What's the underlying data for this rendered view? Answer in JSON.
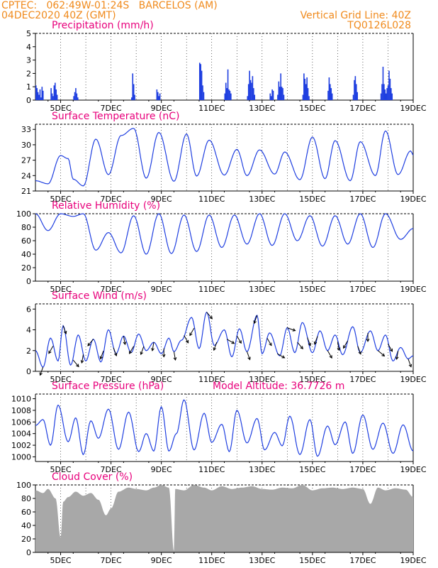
{
  "header": {
    "line1_left": "CPTEC:   062:49W-01:24S   BARCELOS (AM)",
    "line2_left": "04DEC2020 40Z (GMT)",
    "line2_right": "Vertical Grid Line: 40Z",
    "line3_right": "TQ0126L028"
  },
  "colors": {
    "header": "#f08a1c",
    "title": "#e8007c",
    "series": "#1f3fe0",
    "cloud": "#a8a8a8"
  },
  "chart_data": [
    {
      "type": "bar",
      "title": "Precipitation (mm/h)",
      "yticks": [
        0,
        1,
        2,
        3,
        4,
        5
      ],
      "ylim": [
        0,
        5
      ],
      "x_ticks": [
        "5DEC",
        "7DEC",
        "9DEC",
        "11DEC",
        "13DEC",
        "15DEC",
        "17DEC",
        "19DEC"
      ],
      "xlim_days": [
        4,
        19
      ],
      "approximate_rain_events": [
        {
          "day": 4.0,
          "values": [
            1.1,
            0.9,
            0.6,
            0.4,
            0.8,
            0.2,
            1.0,
            0.7
          ]
        },
        {
          "day": 4.6,
          "values": [
            0.9,
            0.5,
            0.3,
            1.1,
            1.3,
            0.8,
            0.4
          ]
        },
        {
          "day": 5.5,
          "values": [
            0.3,
            0.6,
            0.9,
            0.5,
            0.2
          ]
        },
        {
          "day": 7.8,
          "values": [
            0.2,
            2.0,
            1.2,
            0.4
          ]
        },
        {
          "day": 8.8,
          "values": [
            0.8,
            0.6,
            0.3,
            0.5
          ]
        },
        {
          "day": 10.5,
          "values": [
            2.8,
            2.7,
            2.2,
            1.1,
            0.6
          ]
        },
        {
          "day": 11.5,
          "values": [
            0.5,
            1.3,
            0.9,
            2.3,
            0.8,
            0.7,
            0.5
          ]
        },
        {
          "day": 12.4,
          "values": [
            0.3,
            1.2,
            2.2,
            1.5,
            1.3,
            1.8,
            0.9,
            0.4
          ]
        },
        {
          "day": 13.3,
          "values": [
            0.5,
            0.3,
            0.8,
            0.7
          ]
        },
        {
          "day": 13.6,
          "values": [
            0.4,
            1.4,
            1.0,
            2.0,
            1.0,
            0.9,
            0.4
          ]
        },
        {
          "day": 14.6,
          "values": [
            0.4,
            2.0,
            1.6,
            1.2,
            1.7,
            0.9,
            0.3
          ]
        },
        {
          "day": 15.6,
          "values": [
            0.7,
            1.7,
            1.2,
            0.9,
            0.5
          ]
        },
        {
          "day": 16.6,
          "values": [
            0.4,
            1.5,
            1.8,
            1.2,
            0.6
          ]
        },
        {
          "day": 17.7,
          "values": [
            0.5,
            1.2,
            2.5,
            1.2,
            0.8,
            0.5,
            0.9,
            1.1,
            2.2,
            1.6,
            0.9,
            0.5
          ]
        }
      ]
    },
    {
      "type": "line",
      "title": "Surface Temperature (nC)",
      "yticks": [
        21,
        24,
        27,
        30,
        33
      ],
      "ylim": [
        21,
        34
      ],
      "x_ticks": [
        "5DEC",
        "7DEC",
        "9DEC",
        "11DEC",
        "13DEC",
        "15DEC",
        "17DEC",
        "19DEC"
      ],
      "min_max_points": [
        [
          4.0,
          23.0
        ],
        [
          4.5,
          22.4
        ],
        [
          5.0,
          27.9
        ],
        [
          5.3,
          27.3
        ],
        [
          5.5,
          23.3
        ],
        [
          5.9,
          22.0
        ],
        [
          6.4,
          31.1
        ],
        [
          6.9,
          24.2
        ],
        [
          7.4,
          31.8
        ],
        [
          7.9,
          33.2
        ],
        [
          8.4,
          23.5
        ],
        [
          8.9,
          32.4
        ],
        [
          9.5,
          22.9
        ],
        [
          10.0,
          32.1
        ],
        [
          10.4,
          23.9
        ],
        [
          10.9,
          30.9
        ],
        [
          11.5,
          24.1
        ],
        [
          12.0,
          29.1
        ],
        [
          12.4,
          24.0
        ],
        [
          12.9,
          29.0
        ],
        [
          13.5,
          24.3
        ],
        [
          13.9,
          28.6
        ],
        [
          14.5,
          23.2
        ],
        [
          15.0,
          31.5
        ],
        [
          15.5,
          23.4
        ],
        [
          15.9,
          30.8
        ],
        [
          16.5,
          23.0
        ],
        [
          16.9,
          30.6
        ],
        [
          17.5,
          24.0
        ],
        [
          17.9,
          32.7
        ],
        [
          18.4,
          24.2
        ],
        [
          18.9,
          28.8
        ],
        [
          19.0,
          28.0
        ]
      ]
    },
    {
      "type": "line",
      "title": "Relative Humidity (%)",
      "yticks": [
        0,
        20,
        40,
        60,
        80,
        100
      ],
      "ylim": [
        0,
        100
      ],
      "x_ticks": [
        "5DEC",
        "7DEC",
        "9DEC",
        "11DEC",
        "13DEC",
        "15DEC",
        "17DEC",
        "19DEC"
      ],
      "min_max_points": [
        [
          4.0,
          100
        ],
        [
          4.5,
          75
        ],
        [
          5.0,
          100
        ],
        [
          5.5,
          96
        ],
        [
          5.9,
          100
        ],
        [
          6.4,
          46
        ],
        [
          6.9,
          72
        ],
        [
          7.4,
          42
        ],
        [
          7.9,
          97
        ],
        [
          8.4,
          40
        ],
        [
          8.9,
          100
        ],
        [
          9.4,
          41
        ],
        [
          9.9,
          98
        ],
        [
          10.4,
          44
        ],
        [
          10.9,
          98
        ],
        [
          11.4,
          50
        ],
        [
          11.9,
          98
        ],
        [
          12.4,
          55
        ],
        [
          12.9,
          100
        ],
        [
          13.4,
          53
        ],
        [
          13.9,
          100
        ],
        [
          14.4,
          60
        ],
        [
          14.9,
          97
        ],
        [
          15.4,
          52
        ],
        [
          15.9,
          97
        ],
        [
          16.4,
          55
        ],
        [
          16.9,
          100
        ],
        [
          17.4,
          50
        ],
        [
          17.9,
          100
        ],
        [
          18.5,
          62
        ],
        [
          19.0,
          78
        ]
      ]
    },
    {
      "type": "line",
      "title": "Surface Wind (m/s)",
      "yticks": [
        0,
        2,
        4,
        6
      ],
      "ylim": [
        0,
        6.5
      ],
      "x_ticks": [
        "5DEC",
        "7DEC",
        "9DEC",
        "11DEC",
        "13DEC",
        "15DEC",
        "17DEC",
        "19DEC"
      ],
      "min_max_points": [
        [
          4.0,
          2.0
        ],
        [
          4.3,
          0.4
        ],
        [
          4.6,
          3.2
        ],
        [
          4.9,
          1.0
        ],
        [
          5.1,
          4.4
        ],
        [
          5.4,
          0.6
        ],
        [
          5.7,
          3.5
        ],
        [
          6.0,
          1.0
        ],
        [
          6.3,
          3.1
        ],
        [
          6.6,
          0.9
        ],
        [
          6.9,
          4.0
        ],
        [
          7.2,
          1.7
        ],
        [
          7.5,
          3.4
        ],
        [
          7.8,
          1.8
        ],
        [
          8.1,
          3.6
        ],
        [
          8.4,
          2.0
        ],
        [
          8.7,
          2.8
        ],
        [
          9.0,
          1.7
        ],
        [
          9.3,
          3.2
        ],
        [
          9.5,
          1.9
        ],
        [
          9.8,
          3.0
        ],
        [
          10.2,
          5.2
        ],
        [
          10.5,
          2.2
        ],
        [
          10.8,
          5.7
        ],
        [
          11.1,
          2.5
        ],
        [
          11.5,
          4.0
        ],
        [
          11.8,
          1.4
        ],
        [
          12.1,
          4.1
        ],
        [
          12.4,
          1.9
        ],
        [
          12.8,
          5.4
        ],
        [
          13.0,
          1.7
        ],
        [
          13.3,
          3.7
        ],
        [
          13.7,
          1.5
        ],
        [
          14.0,
          4.2
        ],
        [
          14.3,
          1.8
        ],
        [
          14.6,
          4.7
        ],
        [
          15.0,
          1.8
        ],
        [
          15.3,
          3.9
        ],
        [
          15.6,
          2.0
        ],
        [
          15.9,
          3.5
        ],
        [
          16.2,
          1.6
        ],
        [
          16.6,
          4.3
        ],
        [
          16.9,
          1.8
        ],
        [
          17.3,
          3.9
        ],
        [
          17.6,
          2.0
        ],
        [
          17.9,
          3.5
        ],
        [
          18.2,
          1.0
        ],
        [
          18.5,
          2.3
        ],
        [
          18.8,
          1.2
        ],
        [
          19.0,
          1.5
        ]
      ],
      "arrow_days": [
        4.3,
        4.7,
        5.1,
        5.5,
        5.9,
        6.3,
        6.7,
        7.1,
        7.5,
        7.9,
        8.3,
        8.7,
        9.1,
        9.5,
        9.9,
        10.3,
        10.8,
        11.2,
        11.6,
        12.0,
        12.4,
        12.8,
        13.2,
        13.6,
        14.0,
        14.4,
        14.8,
        15.2,
        15.6,
        16.0,
        16.4,
        16.8,
        17.2,
        17.6,
        18.0,
        18.4,
        18.8
      ],
      "arrow_dirs_deg": [
        200,
        210,
        160,
        140,
        190,
        220,
        200,
        160,
        170,
        210,
        200,
        190,
        180,
        170,
        150,
        210,
        140,
        200,
        120,
        150,
        160,
        200,
        150,
        120,
        110,
        140,
        160,
        200,
        150,
        170,
        210,
        160,
        180,
        130,
        150,
        190,
        160
      ]
    },
    {
      "type": "line",
      "title": "Surface Pressure (hPa)",
      "annotation": "Model Altitude: 36.7726 m",
      "yticks": [
        1000,
        1002,
        1004,
        1006,
        1008,
        1010
      ],
      "ylim": [
        999.2,
        1010.8
      ],
      "x_ticks": [
        "5DEC",
        "7DEC",
        "9DEC",
        "11DEC",
        "13DEC",
        "15DEC",
        "17DEC",
        "19DEC"
      ],
      "min_max_points": [
        [
          4.0,
          1005.4
        ],
        [
          4.3,
          1006.4
        ],
        [
          4.6,
          1002.0
        ],
        [
          4.9,
          1008.9
        ],
        [
          5.3,
          1002.6
        ],
        [
          5.6,
          1006.7
        ],
        [
          5.9,
          1000.4
        ],
        [
          6.2,
          1006.2
        ],
        [
          6.5,
          1003.2
        ],
        [
          6.9,
          1008.2
        ],
        [
          7.3,
          1001.3
        ],
        [
          7.7,
          1007.7
        ],
        [
          8.1,
          1000.9
        ],
        [
          8.4,
          1004.0
        ],
        [
          8.7,
          1001.0
        ],
        [
          9.0,
          1008.6
        ],
        [
          9.3,
          1001.0
        ],
        [
          9.6,
          1004.0
        ],
        [
          9.9,
          1009.8
        ],
        [
          10.3,
          1001.2
        ],
        [
          10.7,
          1007.5
        ],
        [
          11.0,
          1002.5
        ],
        [
          11.4,
          1005.6
        ],
        [
          11.7,
          1000.9
        ],
        [
          12.0,
          1008.0
        ],
        [
          12.4,
          1002.4
        ],
        [
          12.8,
          1006.6
        ],
        [
          13.1,
          1001.2
        ],
        [
          13.5,
          1004.2
        ],
        [
          13.8,
          1001.9
        ],
        [
          14.1,
          1007.0
        ],
        [
          14.5,
          1000.4
        ],
        [
          14.9,
          1006.4
        ],
        [
          15.2,
          1000.1
        ],
        [
          15.6,
          1005.3
        ],
        [
          15.9,
          1002.1
        ],
        [
          16.3,
          1006.0
        ],
        [
          16.6,
          1000.6
        ],
        [
          17.0,
          1007.2
        ],
        [
          17.4,
          1001.3
        ],
        [
          17.8,
          1005.8
        ],
        [
          18.2,
          1000.6
        ],
        [
          18.6,
          1005.5
        ],
        [
          19.0,
          1001.0
        ]
      ]
    },
    {
      "type": "area",
      "title": "Cloud Cover (%)",
      "yticks": [
        0,
        20,
        40,
        60,
        80,
        100
      ],
      "ylim": [
        0,
        100
      ],
      "x_ticks": [
        "5DEC",
        "7DEC",
        "9DEC",
        "11DEC",
        "13DEC",
        "15DEC",
        "17DEC",
        "19DEC"
      ],
      "min_max_points": [
        [
          4.0,
          92
        ],
        [
          4.3,
          88
        ],
        [
          4.5,
          94
        ],
        [
          4.8,
          80
        ],
        [
          5.0,
          22
        ],
        [
          5.1,
          75
        ],
        [
          5.3,
          82
        ],
        [
          5.6,
          90
        ],
        [
          5.9,
          84
        ],
        [
          6.2,
          88
        ],
        [
          6.5,
          78
        ],
        [
          6.8,
          55
        ],
        [
          7.0,
          65
        ],
        [
          7.3,
          90
        ],
        [
          7.7,
          96
        ],
        [
          8.0,
          94
        ],
        [
          8.4,
          92
        ],
        [
          8.7,
          96
        ],
        [
          9.0,
          100
        ],
        [
          9.3,
          96
        ],
        [
          9.5,
          2
        ],
        [
          9.55,
          94
        ],
        [
          9.9,
          92
        ],
        [
          10.3,
          100
        ],
        [
          10.7,
          96
        ],
        [
          11.0,
          92
        ],
        [
          11.4,
          98
        ],
        [
          11.8,
          94
        ],
        [
          12.2,
          96
        ],
        [
          12.6,
          98
        ],
        [
          13.0,
          94
        ],
        [
          13.4,
          93
        ],
        [
          13.8,
          96
        ],
        [
          14.2,
          95
        ],
        [
          14.6,
          100
        ],
        [
          15.0,
          92
        ],
        [
          15.4,
          95
        ],
        [
          15.8,
          96
        ],
        [
          16.2,
          94
        ],
        [
          16.6,
          96
        ],
        [
          17.0,
          94
        ],
        [
          17.3,
          72
        ],
        [
          17.6,
          96
        ],
        [
          17.9,
          92
        ],
        [
          18.3,
          95
        ],
        [
          18.7,
          93
        ],
        [
          19.0,
          82
        ]
      ]
    }
  ]
}
